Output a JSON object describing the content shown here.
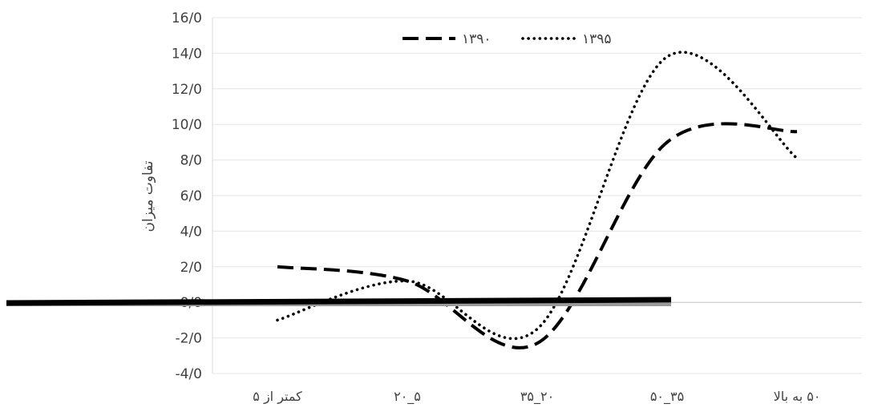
{
  "chart_data": {
    "type": "line",
    "title": "",
    "ylabel": "تفاوت میزان",
    "xlabel": "",
    "categories": [
      "کمتر از ۵",
      "۵_۲۰",
      "۲۰_۳۵",
      "۳۵_۵۰",
      "۵۰ به بالا"
    ],
    "ylim": [
      -4,
      16
    ],
    "yticks": [
      -4,
      -2,
      0,
      2,
      4,
      6,
      8,
      10,
      12,
      14,
      16
    ],
    "ytick_labels": [
      "-4/0",
      "-2/0",
      "0/0",
      "2/0",
      "4/0",
      "6/0",
      "8/0",
      "10/0",
      "12/0",
      "14/0",
      "16/0"
    ],
    "grid": true,
    "legend_position": "top",
    "smooth": true,
    "series": [
      {
        "name": "۱۳۹۰",
        "values": [
          2.0,
          1.2,
          -2.3,
          9.0,
          9.6
        ],
        "style": "dashed",
        "color": "#000000"
      },
      {
        "name": "۱۳۹۵",
        "values": [
          -1.0,
          1.2,
          -1.5,
          13.8,
          8.1
        ],
        "style": "dotted",
        "color": "#000000"
      }
    ]
  }
}
